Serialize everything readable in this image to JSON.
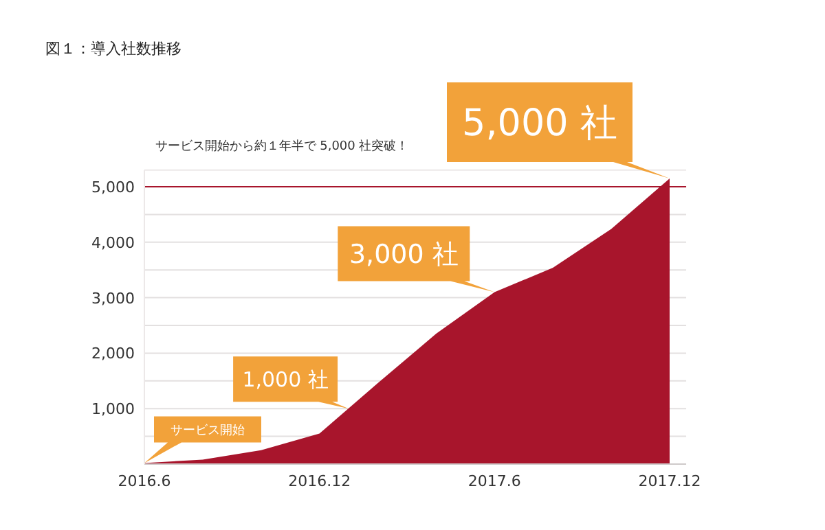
{
  "chart_data": {
    "type": "area",
    "title": "図１：導入社数推移",
    "subtitle": "サービス開始から約１年半で 5,000 社突破！",
    "x": [
      "2016-06",
      "2016-08",
      "2016-10",
      "2016-12",
      "2017-02",
      "2017-04",
      "2017-06",
      "2017-08",
      "2017-10",
      "2017-12"
    ],
    "series": [
      {
        "color": "#a8152c",
        "values": [
          20,
          80,
          250,
          550,
          1460,
          2350,
          3100,
          3540,
          4240,
          5150
        ]
      }
    ],
    "xlim": [
      "2016-06",
      "2017-12-18"
    ],
    "xticks": [
      {
        "value": "2016-06",
        "label": "2016.6"
      },
      {
        "value": "2016-12",
        "label": "2016.12"
      },
      {
        "value": "2017-06",
        "label": "2017.6"
      },
      {
        "value": "2017-12",
        "label": "2017.12"
      }
    ],
    "ylim": [
      0,
      5300
    ],
    "yticks": [
      {
        "value": 500,
        "label": null
      },
      {
        "value": 1000,
        "label": "1,000"
      },
      {
        "value": 1500,
        "label": null
      },
      {
        "value": 2000,
        "label": "2,000"
      },
      {
        "value": 2500,
        "label": null
      },
      {
        "value": 3000,
        "label": "3,000"
      },
      {
        "value": 3500,
        "label": null
      },
      {
        "value": 4000,
        "label": "4,000"
      },
      {
        "value": 4500,
        "label": null
      },
      {
        "value": 5000,
        "label": "5,000"
      }
    ],
    "grid": "y",
    "ref_lines": [
      {
        "axis": "y",
        "value": 5000,
        "color": "#a8152c"
      }
    ],
    "annotations": [
      {
        "text": "サービス開始",
        "x": "2016-06",
        "y": 20
      },
      {
        "text": "1,000 社",
        "x": "2017-01",
        "y": 1000
      },
      {
        "text": "3,000 社",
        "x": "2017-06",
        "y": 3100
      },
      {
        "text": "5,000 社",
        "x": "2017-12",
        "y": 5150
      }
    ]
  }
}
